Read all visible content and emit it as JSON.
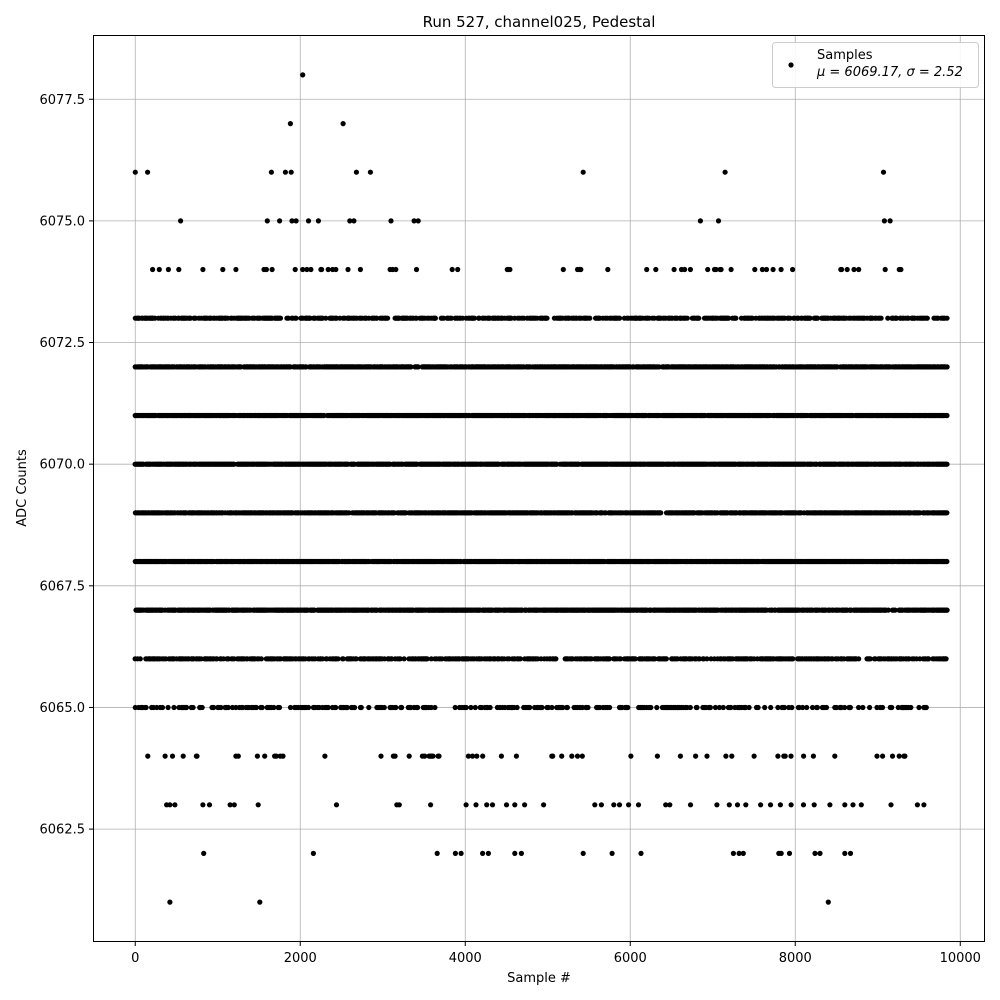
{
  "chart_data": {
    "type": "scatter",
    "title": "Run 527, channel025, Pedestal",
    "xlabel": "Sample #",
    "ylabel": "ADC Counts",
    "xlim": [
      -500,
      10300
    ],
    "ylim": [
      6060.2,
      6078.8
    ],
    "grid": true,
    "legend_position": "top-right",
    "xticks": [
      0,
      2000,
      4000,
      6000,
      8000,
      10000
    ],
    "yticks": [
      6062.5,
      6065.0,
      6067.5,
      6070.0,
      6072.5,
      6075.0,
      6077.5
    ],
    "xtick_labels": [
      "0",
      "2000",
      "4000",
      "6000",
      "8000",
      "10000"
    ],
    "ytick_labels": [
      "6062.5",
      "6065.0",
      "6067.5",
      "6070.0",
      "6072.5",
      "6075.0",
      "6077.5"
    ],
    "series": [
      {
        "name": "Samples",
        "legend_stats": "μ = 6069.17, σ = 2.52",
        "color": "#000000",
        "sample_count": 9850,
        "levels": [
          {
            "y": 6066,
            "runs": [
              [
                0,
                9840,
                0.55
              ]
            ]
          },
          {
            "y": 6067,
            "runs": [
              [
                0,
                9840,
                0.8
              ]
            ]
          },
          {
            "y": 6068,
            "runs": [
              [
                0,
                9840,
                0.9
              ]
            ]
          },
          {
            "y": 6069,
            "runs": [
              [
                0,
                9840,
                0.8
              ]
            ]
          },
          {
            "y": 6070,
            "runs": [
              [
                0,
                9840,
                0.9
              ]
            ]
          },
          {
            "y": 6071,
            "runs": [
              [
                0,
                9840,
                0.85
              ]
            ]
          },
          {
            "y": 6072,
            "runs": [
              [
                0,
                9840,
                0.8
              ]
            ]
          },
          {
            "y": 6073,
            "runs": [
              [
                0,
                9840,
                0.55
              ]
            ]
          },
          {
            "y": 6065,
            "runs": [
              [
                0,
                9600,
                0.28
              ]
            ]
          },
          {
            "y": 6064,
            "runs": [
              [
                120,
                9740,
                0.07
              ]
            ]
          },
          {
            "y": 6074,
            "runs": [
              [
                0,
                9650,
                0.06
              ]
            ]
          }
        ],
        "outliers": [
          [
            2030,
            6078
          ],
          [
            1880,
            6077
          ],
          [
            2520,
            6077
          ],
          [
            0,
            6076
          ],
          [
            150,
            6076
          ],
          [
            1650,
            6076
          ],
          [
            1820,
            6076
          ],
          [
            1890,
            6076
          ],
          [
            2680,
            6076
          ],
          [
            2850,
            6076
          ],
          [
            5430,
            6076
          ],
          [
            7150,
            6076
          ],
          [
            9070,
            6076
          ],
          [
            550,
            6075
          ],
          [
            1600,
            6075
          ],
          [
            1750,
            6075
          ],
          [
            1900,
            6075
          ],
          [
            1950,
            6075
          ],
          [
            2100,
            6075
          ],
          [
            2220,
            6075
          ],
          [
            2600,
            6075
          ],
          [
            2650,
            6075
          ],
          [
            3100,
            6075
          ],
          [
            3380,
            6075
          ],
          [
            3430,
            6075
          ],
          [
            6850,
            6075
          ],
          [
            7070,
            6075
          ],
          [
            9080,
            6075
          ],
          [
            9150,
            6075
          ],
          [
            380,
            6063
          ],
          [
            420,
            6063
          ],
          [
            480,
            6063
          ],
          [
            820,
            6063
          ],
          [
            900,
            6063
          ],
          [
            1150,
            6063
          ],
          [
            1200,
            6063
          ],
          [
            1490,
            6063
          ],
          [
            2440,
            6063
          ],
          [
            3170,
            6063
          ],
          [
            3200,
            6063
          ],
          [
            3580,
            6063
          ],
          [
            4010,
            6063
          ],
          [
            4130,
            6063
          ],
          [
            4260,
            6063
          ],
          [
            4330,
            6063
          ],
          [
            4500,
            6063
          ],
          [
            4600,
            6063
          ],
          [
            4720,
            6063
          ],
          [
            4950,
            6063
          ],
          [
            5570,
            6063
          ],
          [
            5650,
            6063
          ],
          [
            5800,
            6063
          ],
          [
            5870,
            6063
          ],
          [
            5980,
            6063
          ],
          [
            6100,
            6063
          ],
          [
            6430,
            6063
          ],
          [
            6480,
            6063
          ],
          [
            6730,
            6063
          ],
          [
            7050,
            6063
          ],
          [
            7200,
            6063
          ],
          [
            7300,
            6063
          ],
          [
            7400,
            6063
          ],
          [
            7580,
            6063
          ],
          [
            7700,
            6063
          ],
          [
            7820,
            6063
          ],
          [
            7950,
            6063
          ],
          [
            8100,
            6063
          ],
          [
            8230,
            6063
          ],
          [
            8420,
            6063
          ],
          [
            8600,
            6063
          ],
          [
            8700,
            6063
          ],
          [
            8800,
            6063
          ],
          [
            9160,
            6063
          ],
          [
            9480,
            6063
          ],
          [
            9560,
            6063
          ],
          [
            830,
            6062
          ],
          [
            2160,
            6062
          ],
          [
            3660,
            6062
          ],
          [
            3880,
            6062
          ],
          [
            3950,
            6062
          ],
          [
            4210,
            6062
          ],
          [
            4280,
            6062
          ],
          [
            4600,
            6062
          ],
          [
            4680,
            6062
          ],
          [
            5430,
            6062
          ],
          [
            5780,
            6062
          ],
          [
            6130,
            6062
          ],
          [
            7250,
            6062
          ],
          [
            7320,
            6062
          ],
          [
            7370,
            6062
          ],
          [
            7800,
            6062
          ],
          [
            7830,
            6062
          ],
          [
            7930,
            6062
          ],
          [
            8240,
            6062
          ],
          [
            8300,
            6062
          ],
          [
            8600,
            6062
          ],
          [
            8670,
            6062
          ],
          [
            420,
            6061
          ],
          [
            1510,
            6061
          ],
          [
            8400,
            6061
          ]
        ]
      }
    ]
  }
}
